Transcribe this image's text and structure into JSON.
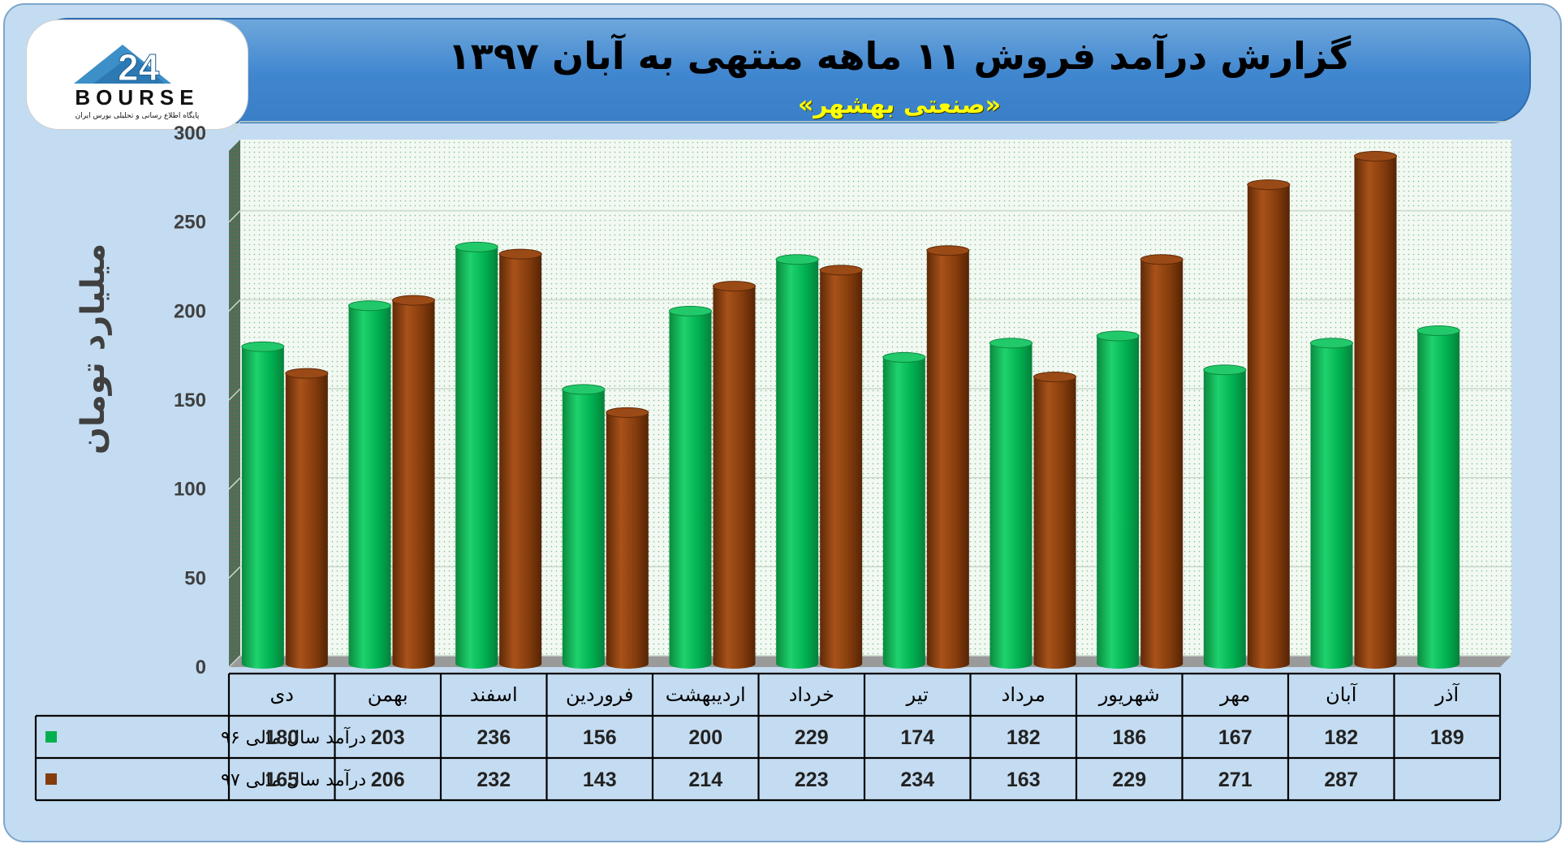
{
  "header": {
    "title": "گزارش درآمد فروش ۱۱ ماهه منتهی به آبان ۱۳۹۷",
    "subtitle": "«صنعتی بهشهر»"
  },
  "logo": {
    "wordmark": "BOURSE",
    "number": "24",
    "tagline": "پایگاه اطلاع رسانی و تحلیلی بورس ایران"
  },
  "colors": {
    "series96": "#00b050",
    "series97": "#843c0c",
    "plot_bg": "#e8f3ea",
    "frame_bg": "#c4dcf1"
  },
  "chart_data": {
    "type": "bar",
    "ylabel": "میلیارد تومان",
    "ylim": [
      0,
      300
    ],
    "yticks": [
      0,
      50,
      100,
      150,
      200,
      250,
      300
    ],
    "grid": true,
    "categories": [
      "دی",
      "بهمن",
      "اسفند",
      "فروردین",
      "اردیبهشت",
      "خرداد",
      "تیر",
      "مرداد",
      "شهریور",
      "مهر",
      "آبان",
      "آذر"
    ],
    "series": [
      {
        "name": "درآمد سال مالی ۹۶",
        "color": "#00b050",
        "values": [
          180,
          203,
          236,
          156,
          200,
          229,
          174,
          182,
          186,
          167,
          182,
          189
        ]
      },
      {
        "name": "درآمد سال مالی ۹۷",
        "color": "#843c0c",
        "values": [
          165,
          206,
          232,
          143,
          214,
          223,
          234,
          163,
          229,
          271,
          287,
          null
        ]
      }
    ],
    "legend": "data-table"
  }
}
